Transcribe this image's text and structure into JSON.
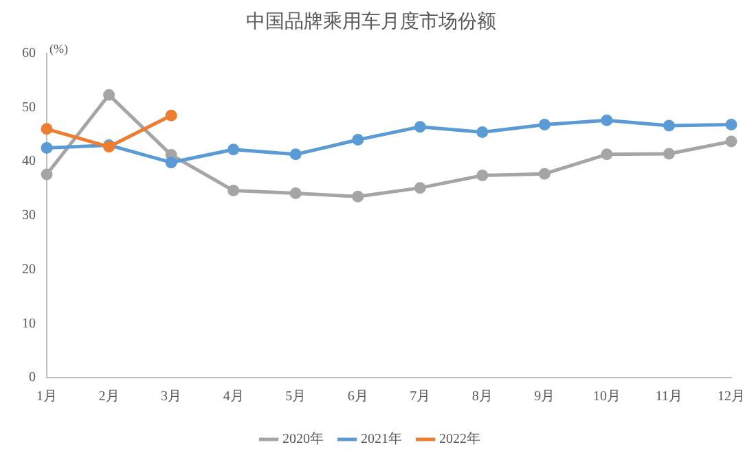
{
  "chart_data": {
    "type": "line",
    "title": "中国品牌乘用车月度市场份额",
    "ylabel": "(%)",
    "categories": [
      "1月",
      "2月",
      "3月",
      "4月",
      "5月",
      "6月",
      "7月",
      "8月",
      "9月",
      "10月",
      "11月",
      "12月"
    ],
    "series": [
      {
        "name": "2020年",
        "color": "#a5a5a5",
        "values": [
          37.6,
          52.3,
          41.2,
          34.6,
          34.1,
          33.5,
          35.1,
          37.4,
          37.7,
          41.3,
          41.4,
          43.7
        ]
      },
      {
        "name": "2021年",
        "color": "#5b9bd5",
        "values": [
          42.5,
          43.0,
          39.8,
          42.2,
          41.3,
          44.0,
          46.4,
          45.4,
          46.8,
          47.6,
          46.6,
          46.8
        ]
      },
      {
        "name": "2022年",
        "color": "#ed7d31",
        "values": [
          46.0,
          42.7,
          48.5,
          null,
          null,
          null,
          null,
          null,
          null,
          null,
          null,
          null
        ]
      }
    ],
    "ylim": [
      0,
      60
    ],
    "yticks": [
      0,
      10,
      20,
      30,
      40,
      50,
      60
    ],
    "grid": false,
    "legend": "bottom",
    "marker": "circle",
    "line_style": "solid"
  }
}
